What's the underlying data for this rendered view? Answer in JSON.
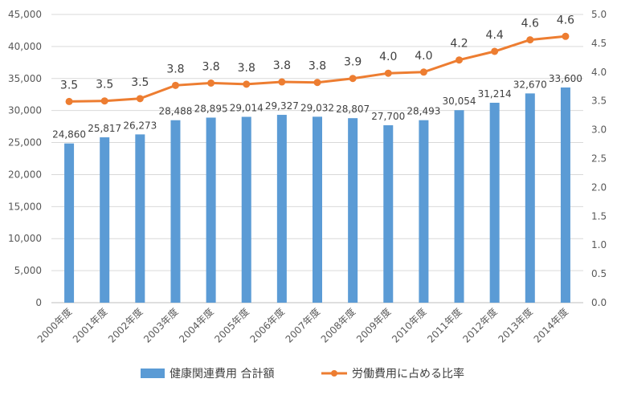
{
  "chart_data": {
    "type": "bar",
    "categories": [
      "2000年度",
      "2001年度",
      "2002年度",
      "2003年度",
      "2004年度",
      "2005年度",
      "2006年度",
      "2007年度",
      "2008年度",
      "2009年度",
      "2010年度",
      "2011年度",
      "2012年度",
      "2013年度",
      "2014年度"
    ],
    "series": [
      {
        "name": "健康関連費用 合計額",
        "type": "bar",
        "axis": "left",
        "color": "#5B9BD5",
        "values": [
          24860,
          25817,
          26273,
          28488,
          28895,
          29014,
          29327,
          29032,
          28807,
          27700,
          28493,
          30054,
          31214,
          32670,
          33600
        ],
        "labels": [
          "24,860",
          "25,817",
          "26,273",
          "28,488",
          "28,895",
          "29,014",
          "29,327",
          "29,032",
          "28,807",
          "27,700",
          "28,493",
          "30,054",
          "31,214",
          "32,670",
          "33,600"
        ]
      },
      {
        "name": "労働費用に占める比率",
        "type": "line",
        "axis": "right",
        "color": "#ED7D31",
        "values": [
          3.49,
          3.5,
          3.54,
          3.77,
          3.81,
          3.79,
          3.83,
          3.82,
          3.89,
          3.98,
          4.0,
          4.21,
          4.36,
          4.56,
          4.62
        ],
        "labels": [
          "3.5",
          "3.5",
          "3.5",
          "3.8",
          "3.8",
          "3.8",
          "3.8",
          "3.8",
          "3.9",
          "4.0",
          "4.0",
          "4.2",
          "4.4",
          "4.6",
          "4.6"
        ]
      }
    ],
    "y_left": {
      "min": 0,
      "max": 45000,
      "ticks": [
        0,
        5000,
        10000,
        15000,
        20000,
        25000,
        30000,
        35000,
        40000,
        45000
      ],
      "tick_labels": [
        "0",
        "5,000",
        "10,000",
        "15,000",
        "20,000",
        "25,000",
        "30,000",
        "35,000",
        "40,000",
        "45,000"
      ]
    },
    "y_right": {
      "min": 0,
      "max": 5,
      "ticks": [
        0,
        0.5,
        1,
        1.5,
        2,
        2.5,
        3,
        3.5,
        4,
        4.5,
        5
      ],
      "tick_labels": [
        "0.0",
        "0.5",
        "1.0",
        "1.5",
        "2.0",
        "2.5",
        "3.0",
        "3.5",
        "4.0",
        "4.5",
        "5.0"
      ]
    },
    "grid": true,
    "legend_position": "bottom",
    "title": "",
    "xlabel": "",
    "ylabel": ""
  }
}
